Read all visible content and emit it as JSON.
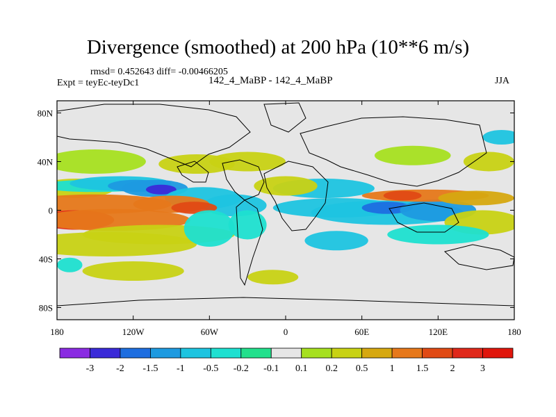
{
  "header": {
    "title": "Divergence (smoothed) at 200 hPa (10**6 m/s)",
    "stats": "rmsd= 0.452643 diff= -0.00466205",
    "expt": "Expt = teyEc-teyDc1",
    "case": "142_4_MaBP - 142_4_MaBP",
    "season": "JJA"
  },
  "chart_data": {
    "type": "heatmap",
    "title": "Divergence (smoothed) at 200 hPa (10**6 m/s)",
    "projection": "cylindrical equidistant",
    "x_range": [
      -180,
      180
    ],
    "y_range": [
      -90,
      90
    ],
    "x_ticks": [
      {
        "value": -180,
        "label": "180"
      },
      {
        "value": -120,
        "label": "120W"
      },
      {
        "value": -60,
        "label": "60W"
      },
      {
        "value": 0,
        "label": "0"
      },
      {
        "value": 60,
        "label": "60E"
      },
      {
        "value": 120,
        "label": "120E"
      },
      {
        "value": 180,
        "label": "180"
      }
    ],
    "y_ticks": [
      {
        "value": 80,
        "label": "80N"
      },
      {
        "value": 40,
        "label": "40N"
      },
      {
        "value": 0,
        "label": "0"
      },
      {
        "value": -40,
        "label": "40S"
      },
      {
        "value": -80,
        "label": "80S"
      }
    ],
    "colorbar": {
      "levels": [
        "-3",
        "-2",
        "-1.5",
        "-1",
        "-0.5",
        "-0.2",
        "-0.1",
        "0.1",
        "0.2",
        "0.5",
        "1",
        "1.5",
        "2",
        "3"
      ],
      "colors": [
        "#8a2be2",
        "#3a2ad8",
        "#1e6ee0",
        "#1e9ae0",
        "#1ec4e0",
        "#1ee0d0",
        "#22e08c",
        "#e6e6e6",
        "#a6e020",
        "#c8d214",
        "#d6a810",
        "#e6781a",
        "#e04a14",
        "#e0281a",
        "#e0160c"
      ]
    },
    "features": [
      {
        "lon": -165,
        "lat": 18,
        "w": 30,
        "h": 8,
        "level": 9
      },
      {
        "lon": -150,
        "lat": 20,
        "w": 45,
        "h": 5,
        "level": 5
      },
      {
        "lon": -130,
        "lat": 22,
        "w": 40,
        "h": 6,
        "level": 4
      },
      {
        "lon": -118,
        "lat": 20,
        "w": 22,
        "h": 5,
        "level": 3
      },
      {
        "lon": -103,
        "lat": 18,
        "w": 26,
        "h": 7,
        "level": 3
      },
      {
        "lon": -98,
        "lat": 17,
        "w": 12,
        "h": 4,
        "level": 1
      },
      {
        "lon": -65,
        "lat": 10,
        "w": 30,
        "h": 9,
        "level": 4
      },
      {
        "lon": -40,
        "lat": 4,
        "w": 25,
        "h": 9,
        "level": 4
      },
      {
        "lon": -150,
        "lat": 5,
        "w": 60,
        "h": 8,
        "level": 11
      },
      {
        "lon": -165,
        "lat": -8,
        "w": 30,
        "h": 8,
        "level": 13
      },
      {
        "lon": -135,
        "lat": -8,
        "w": 60,
        "h": 9,
        "level": 11
      },
      {
        "lon": -90,
        "lat": 5,
        "w": 30,
        "h": 7,
        "level": 11
      },
      {
        "lon": -72,
        "lat": 2,
        "w": 18,
        "h": 5,
        "level": 12
      },
      {
        "lon": -100,
        "lat": -20,
        "w": 60,
        "h": 8,
        "level": 9
      },
      {
        "lon": -140,
        "lat": -28,
        "w": 70,
        "h": 10,
        "level": 9
      },
      {
        "lon": -60,
        "lat": -15,
        "w": 20,
        "h": 15,
        "level": 5
      },
      {
        "lon": -30,
        "lat": -12,
        "w": 15,
        "h": 12,
        "level": 5
      },
      {
        "lon": 40,
        "lat": 2,
        "w": 50,
        "h": 8,
        "level": 4
      },
      {
        "lon": 80,
        "lat": -2,
        "w": 60,
        "h": 10,
        "level": 4
      },
      {
        "lon": 80,
        "lat": 2,
        "w": 20,
        "h": 5,
        "level": 2
      },
      {
        "lon": 120,
        "lat": 0,
        "w": 30,
        "h": 9,
        "level": 3
      },
      {
        "lon": 30,
        "lat": 18,
        "w": 40,
        "h": 8,
        "level": 4
      },
      {
        "lon": 110,
        "lat": 12,
        "w": 50,
        "h": 5,
        "level": 11
      },
      {
        "lon": 92,
        "lat": 12,
        "w": 15,
        "h": 4,
        "level": 12
      },
      {
        "lon": 150,
        "lat": 10,
        "w": 30,
        "h": 6,
        "level": 10
      },
      {
        "lon": 155,
        "lat": -10,
        "w": 30,
        "h": 10,
        "level": 9
      },
      {
        "lon": 120,
        "lat": -20,
        "w": 40,
        "h": 8,
        "level": 5
      },
      {
        "lon": 40,
        "lat": -25,
        "w": 25,
        "h": 8,
        "level": 4
      },
      {
        "lon": -30,
        "lat": 40,
        "w": 30,
        "h": 8,
        "level": 9
      },
      {
        "lon": -150,
        "lat": 40,
        "w": 40,
        "h": 10,
        "level": 8
      },
      {
        "lon": -70,
        "lat": 38,
        "w": 30,
        "h": 8,
        "level": 9
      },
      {
        "lon": 160,
        "lat": 40,
        "w": 20,
        "h": 8,
        "level": 9
      },
      {
        "lon": -120,
        "lat": -50,
        "w": 40,
        "h": 8,
        "level": 9
      },
      {
        "lon": -170,
        "lat": -45,
        "w": 10,
        "h": 6,
        "level": 5
      },
      {
        "lon": 170,
        "lat": 60,
        "w": 15,
        "h": 6,
        "level": 4
      },
      {
        "lon": -10,
        "lat": -55,
        "w": 20,
        "h": 6,
        "level": 9
      },
      {
        "lon": 100,
        "lat": 45,
        "w": 30,
        "h": 8,
        "level": 8
      },
      {
        "lon": 0,
        "lat": 20,
        "w": 25,
        "h": 8,
        "level": 9
      }
    ]
  }
}
